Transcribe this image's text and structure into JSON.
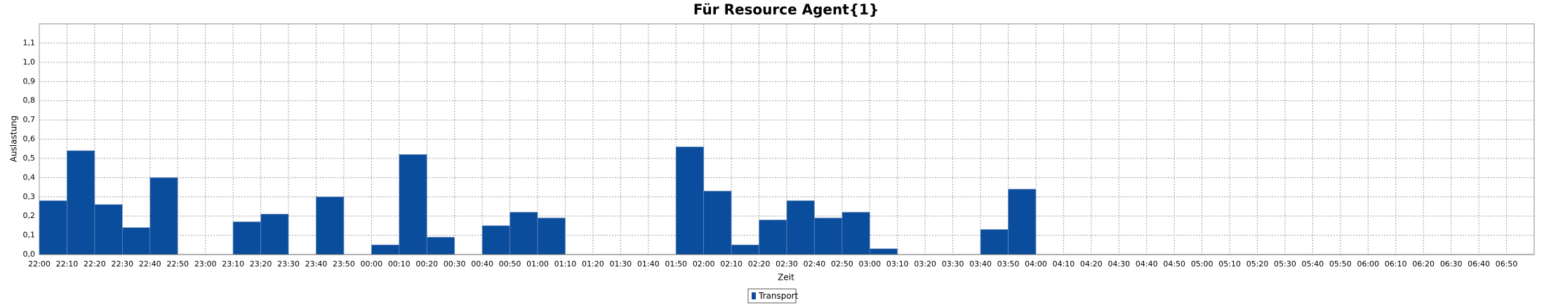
{
  "chart_data": {
    "type": "histogram",
    "title": "Für Resource Agent{1}",
    "x_label": "Zeit",
    "y_label": "Auslastung",
    "series": [
      {
        "name": "Transport",
        "color": "#0a4d9c",
        "x": [
          0,
          10,
          20,
          30,
          40,
          70,
          80,
          100,
          120,
          130,
          140,
          160,
          170,
          180,
          230,
          240,
          250,
          260,
          270,
          280,
          290,
          300,
          340,
          350
        ],
        "values": [
          0.28,
          0.54,
          0.26,
          0.14,
          0.4,
          0.17,
          0.21,
          0.3,
          0.05,
          0.52,
          0.09,
          0.15,
          0.22,
          0.19,
          0.56,
          0.33,
          0.05,
          0.18,
          0.28,
          0.19,
          0.22,
          0.03,
          0.13,
          0.34
        ]
      }
    ],
    "bar_width": 10,
    "xlim": [
      0,
      540
    ],
    "ylim": [
      0,
      1.2
    ],
    "xticks": [
      {
        "value": 0,
        "label": "22:00"
      },
      {
        "value": 10,
        "label": "22:10"
      },
      {
        "value": 20,
        "label": "22:20"
      },
      {
        "value": 30,
        "label": "22:30"
      },
      {
        "value": 40,
        "label": "22:40"
      },
      {
        "value": 50,
        "label": "22:50"
      },
      {
        "value": 60,
        "label": "23:00"
      },
      {
        "value": 70,
        "label": "23:10"
      },
      {
        "value": 80,
        "label": "23:20"
      },
      {
        "value": 90,
        "label": "23:30"
      },
      {
        "value": 100,
        "label": "23:40"
      },
      {
        "value": 110,
        "label": "23:50"
      },
      {
        "value": 120,
        "label": "00:00"
      },
      {
        "value": 130,
        "label": "00:10"
      },
      {
        "value": 140,
        "label": "00:20"
      },
      {
        "value": 150,
        "label": "00:30"
      },
      {
        "value": 160,
        "label": "00:40"
      },
      {
        "value": 170,
        "label": "00:50"
      },
      {
        "value": 180,
        "label": "01:00"
      },
      {
        "value": 190,
        "label": "01:10"
      },
      {
        "value": 200,
        "label": "01:20"
      },
      {
        "value": 210,
        "label": "01:30"
      },
      {
        "value": 220,
        "label": "01:40"
      },
      {
        "value": 230,
        "label": "01:50"
      },
      {
        "value": 240,
        "label": "02:00"
      },
      {
        "value": 250,
        "label": "02:10"
      },
      {
        "value": 260,
        "label": "02:20"
      },
      {
        "value": 270,
        "label": "02:30"
      },
      {
        "value": 280,
        "label": "02:40"
      },
      {
        "value": 290,
        "label": "02:50"
      },
      {
        "value": 300,
        "label": "03:00"
      },
      {
        "value": 310,
        "label": "03:10"
      },
      {
        "value": 320,
        "label": "03:20"
      },
      {
        "value": 330,
        "label": "03:30"
      },
      {
        "value": 340,
        "label": "03:40"
      },
      {
        "value": 350,
        "label": "03:50"
      },
      {
        "value": 360,
        "label": "04:00"
      },
      {
        "value": 370,
        "label": "04:10"
      },
      {
        "value": 380,
        "label": "04:20"
      },
      {
        "value": 390,
        "label": "04:30"
      },
      {
        "value": 400,
        "label": "04:40"
      },
      {
        "value": 410,
        "label": "04:50"
      },
      {
        "value": 420,
        "label": "05:00"
      },
      {
        "value": 430,
        "label": "05:10"
      },
      {
        "value": 440,
        "label": "05:20"
      },
      {
        "value": 450,
        "label": "05:30"
      },
      {
        "value": 460,
        "label": "05:40"
      },
      {
        "value": 470,
        "label": "05:50"
      },
      {
        "value": 480,
        "label": "06:00"
      },
      {
        "value": 490,
        "label": "06:10"
      },
      {
        "value": 500,
        "label": "06:20"
      },
      {
        "value": 510,
        "label": "06:30"
      },
      {
        "value": 520,
        "label": "06:40"
      },
      {
        "value": 530,
        "label": "06:50"
      }
    ],
    "yticks": [
      {
        "value": 0,
        "label": "0,0"
      },
      {
        "value": 0.1,
        "label": "0,1"
      },
      {
        "value": 0.2,
        "label": "0,2"
      },
      {
        "value": 0.3,
        "label": "0,3"
      },
      {
        "value": 0.4,
        "label": "0,4"
      },
      {
        "value": 0.5,
        "label": "0,5"
      },
      {
        "value": 0.6,
        "label": "0,6"
      },
      {
        "value": 0.7,
        "label": "0,7"
      },
      {
        "value": 0.8,
        "label": "0,8"
      },
      {
        "value": 0.9,
        "label": "0,9"
      },
      {
        "value": 1.0,
        "label": "1,0"
      },
      {
        "value": 1.1,
        "label": "1,1"
      }
    ],
    "grid": true
  }
}
